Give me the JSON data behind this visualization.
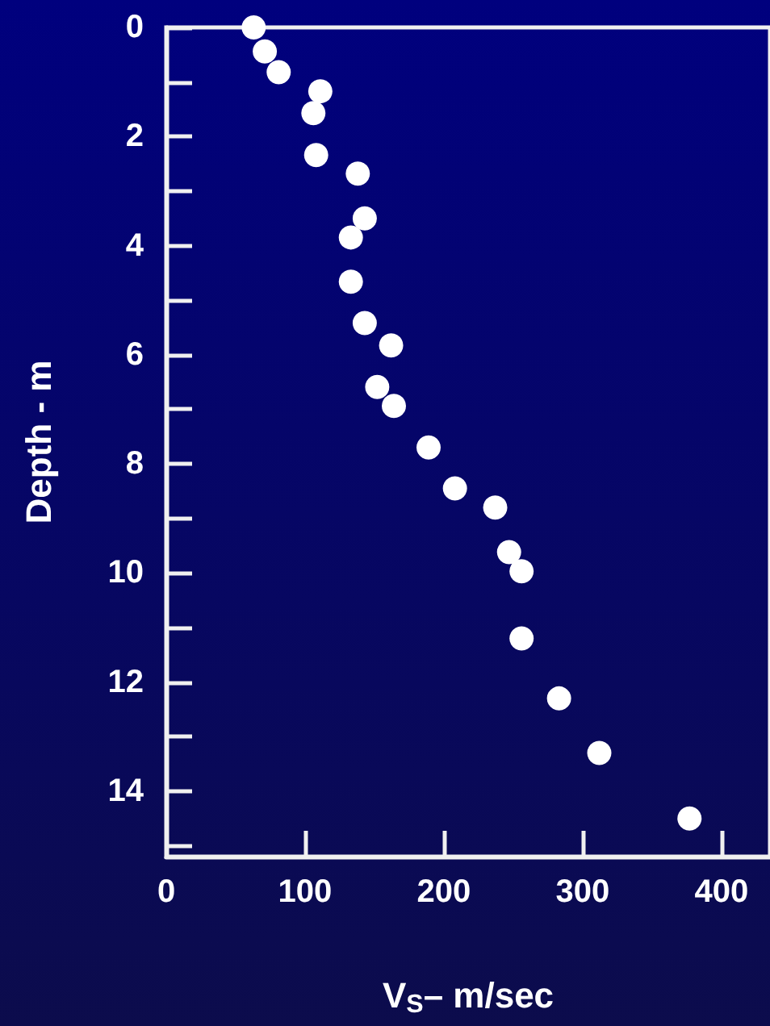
{
  "chart_data": {
    "type": "scatter",
    "xlabel": "V$_{S}$– m/sec",
    "ylabel": "Depth - m",
    "x": [
      63,
      71,
      81,
      111,
      106,
      108,
      138,
      143,
      133,
      133,
      143,
      162,
      152,
      164,
      189,
      208,
      237,
      247,
      256,
      256,
      283,
      312,
      377
    ],
    "series": [
      {
        "color": "#ffffff",
        "values": [
          0,
          0.44,
          0.82,
          1.17,
          1.57,
          2.34,
          2.68,
          3.5,
          3.85,
          4.66,
          5.42,
          5.83,
          6.59,
          6.94,
          7.7,
          8.45,
          8.8,
          9.62,
          9.97,
          11.2,
          12.3,
          13.3,
          14.5
        ]
      }
    ],
    "xlim": [
      0,
      435
    ],
    "xticks": [
      0,
      100,
      200,
      300,
      400
    ],
    "ylim": [
      15.2,
      0
    ],
    "yticks": [
      0,
      {
        "value": 1,
        "label": null
      },
      2,
      {
        "value": 3,
        "label": null
      },
      4,
      {
        "value": 5,
        "label": null
      },
      6,
      {
        "value": 7,
        "label": null
      },
      8,
      {
        "value": 9,
        "label": null
      },
      10,
      {
        "value": 11,
        "label": null
      },
      12,
      {
        "value": 13,
        "label": null
      },
      14,
      {
        "value": 15,
        "label": null
      }
    ],
    "grid": false,
    "marker": "circle"
  }
}
